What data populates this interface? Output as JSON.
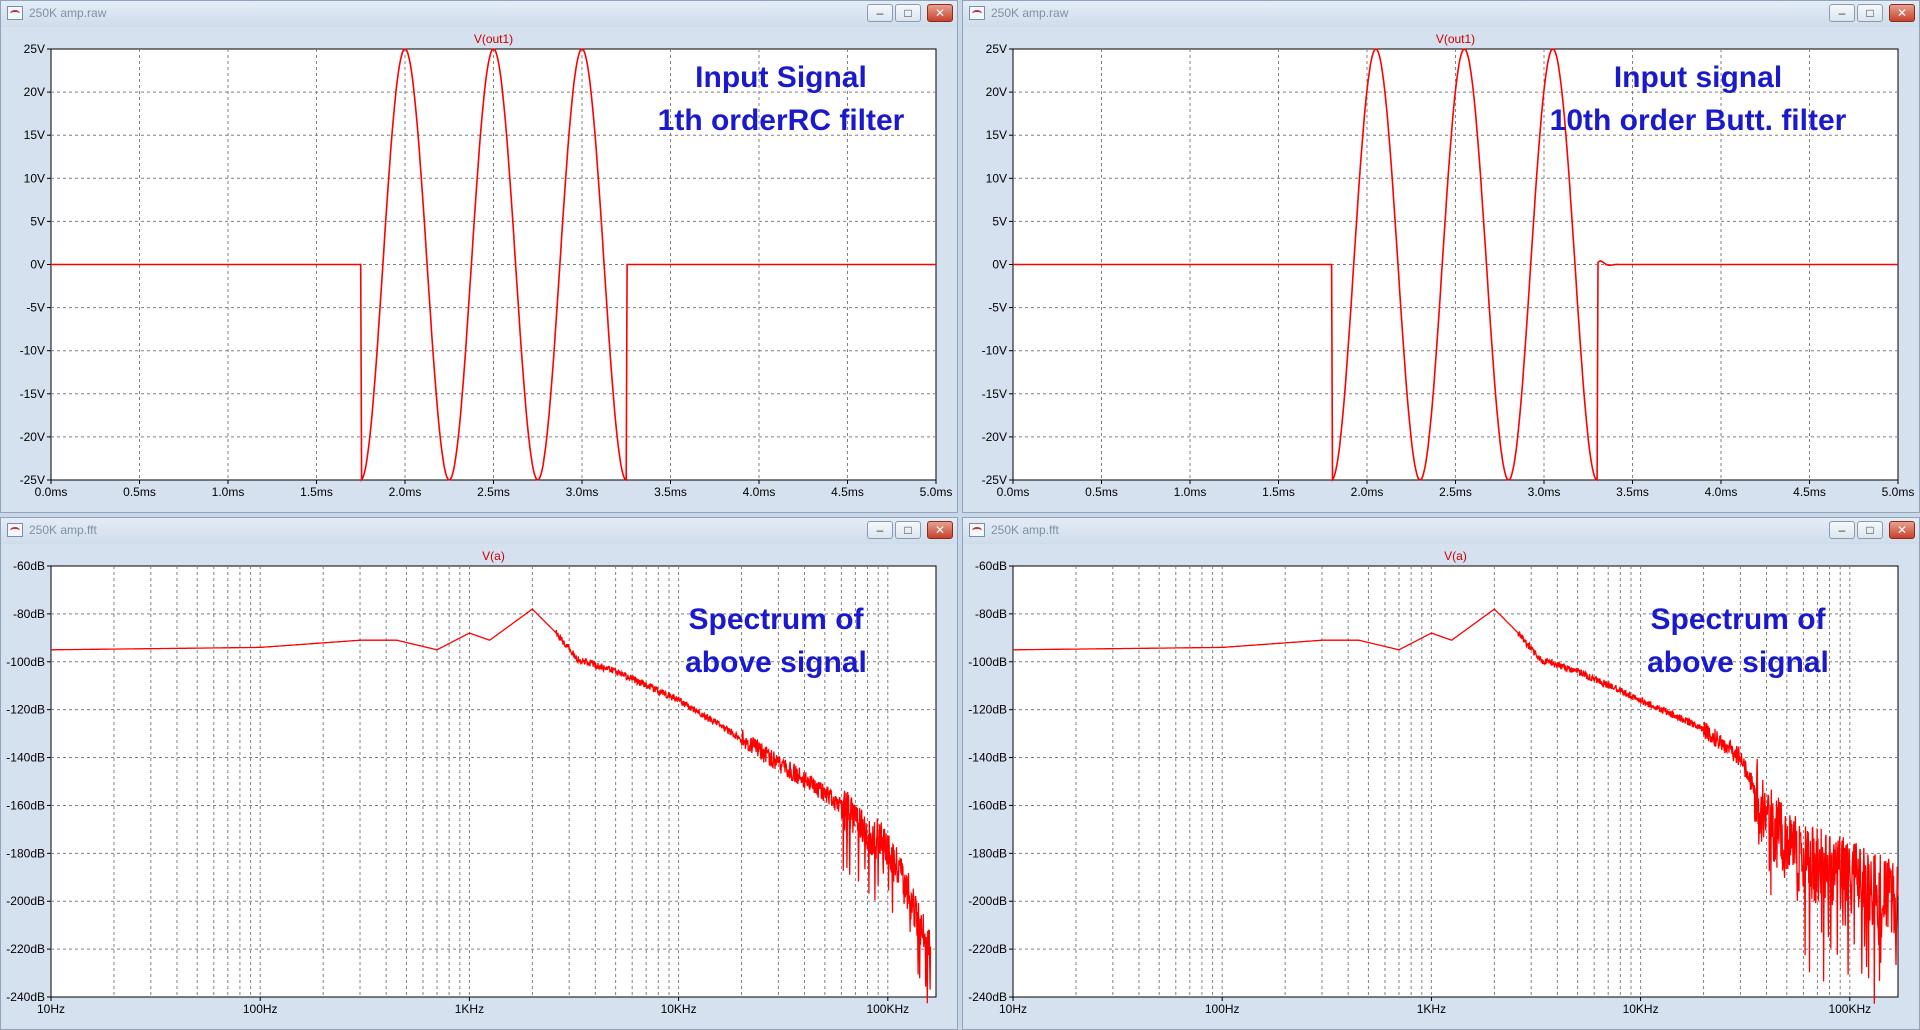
{
  "windows": [
    {
      "title": "250K amp.raw",
      "panel": {
        "type": "time",
        "trace": "V(out1)",
        "xlabels": [
          "0.0ms",
          "0.5ms",
          "1.0ms",
          "1.5ms",
          "2.0ms",
          "2.5ms",
          "3.0ms",
          "3.5ms",
          "4.0ms",
          "4.5ms",
          "5.0ms"
        ],
        "ylabels": [
          "25V",
          "20V",
          "15V",
          "10V",
          "5V",
          "0V",
          "-5V",
          "-10V",
          "-15V",
          "-20V",
          "-25V"
        ],
        "annotation": [
          "Input Signal",
          "1th orderRC filter"
        ]
      }
    },
    {
      "title": "250K amp.raw",
      "panel": {
        "type": "time",
        "trace": "V(out1)",
        "xlabels": [
          "0.0ms",
          "0.5ms",
          "1.0ms",
          "1.5ms",
          "2.0ms",
          "2.5ms",
          "3.0ms",
          "3.5ms",
          "4.0ms",
          "4.5ms",
          "5.0ms"
        ],
        "ylabels": [
          "25V",
          "20V",
          "15V",
          "10V",
          "5V",
          "0V",
          "-5V",
          "-10V",
          "-15V",
          "-20V",
          "-25V"
        ],
        "annotation": [
          "Input signal",
          "10th order Butt. filter"
        ]
      }
    },
    {
      "title": "250K amp.fft",
      "panel": {
        "type": "fft",
        "trace": "V(a)",
        "xlabels": [
          "10Hz",
          "100Hz",
          "1KHz",
          "10KHz",
          "100KHz"
        ],
        "ylabels": [
          "-60dB",
          "-80dB",
          "-100dB",
          "-120dB",
          "-140dB",
          "-160dB",
          "-180dB",
          "-200dB",
          "-220dB",
          "-240dB"
        ],
        "annotation": [
          "Spectrum of",
          "above signal"
        ]
      }
    },
    {
      "title": "250K amp.fft",
      "panel": {
        "type": "fft",
        "trace": "V(a)",
        "xlabels": [
          "10Hz",
          "100Hz",
          "1KHz",
          "10KHz",
          "100KHz"
        ],
        "ylabels": [
          "-60dB",
          "-80dB",
          "-100dB",
          "-120dB",
          "-140dB",
          "-160dB",
          "-180dB",
          "-200dB",
          "-220dB",
          "-240dB"
        ],
        "annotation": [
          "Spectrum of",
          "above signal"
        ]
      }
    }
  ],
  "chart_data": [
    {
      "type": "line",
      "series_label": "V(out1)",
      "xlim_ms": [
        0,
        5
      ],
      "ylim_V": [
        -25,
        25
      ],
      "grid": true,
      "signal": {
        "amplitude_V": 25,
        "frequency_Hz": 2000,
        "cycles": 3,
        "start_ms": 1.75,
        "end_ms": 3.25
      },
      "filter": "1th orderRC filter"
    },
    {
      "type": "line",
      "series_label": "V(out1)",
      "xlim_ms": [
        0,
        5
      ],
      "ylim_V": [
        -25,
        25
      ],
      "grid": true,
      "signal": {
        "amplitude_V": 25,
        "frequency_Hz": 2000,
        "cycles": 3,
        "start_ms": 1.8,
        "end_ms": 3.3
      },
      "filter": "10th order Butt. filter"
    },
    {
      "type": "line",
      "series_label": "V(a)",
      "xscale": "log",
      "xlim_Hz": [
        10,
        170000
      ],
      "ylim_dB": [
        -240,
        -60
      ],
      "grid": true,
      "points": [
        [
          10,
          -95
        ],
        [
          100,
          -94
        ],
        [
          300,
          -91
        ],
        [
          450,
          -91
        ],
        [
          700,
          -95
        ],
        [
          1000,
          -88
        ],
        [
          1250,
          -91
        ],
        [
          2000,
          -78
        ],
        [
          2600,
          -88
        ],
        [
          3300,
          -99
        ],
        [
          5000,
          -104
        ],
        [
          10000,
          -116
        ],
        [
          20000,
          -132
        ],
        [
          50000,
          -155
        ],
        [
          100000,
          -178
        ],
        [
          130000,
          -200
        ],
        [
          160000,
          -222
        ]
      ]
    },
    {
      "type": "line",
      "series_label": "V(a)",
      "xscale": "log",
      "xlim_Hz": [
        10,
        170000
      ],
      "ylim_dB": [
        -240,
        -60
      ],
      "grid": true,
      "points": [
        [
          10,
          -95
        ],
        [
          100,
          -94
        ],
        [
          300,
          -91
        ],
        [
          450,
          -91
        ],
        [
          700,
          -95
        ],
        [
          1000,
          -88
        ],
        [
          1250,
          -91
        ],
        [
          2000,
          -78
        ],
        [
          2600,
          -88
        ],
        [
          3300,
          -99
        ],
        [
          5000,
          -104
        ],
        [
          10000,
          -116
        ],
        [
          20000,
          -128
        ],
        [
          30000,
          -140
        ],
        [
          40000,
          -165
        ],
        [
          50000,
          -178
        ],
        [
          70000,
          -185
        ],
        [
          100000,
          -190
        ],
        [
          170000,
          -200
        ]
      ]
    }
  ]
}
